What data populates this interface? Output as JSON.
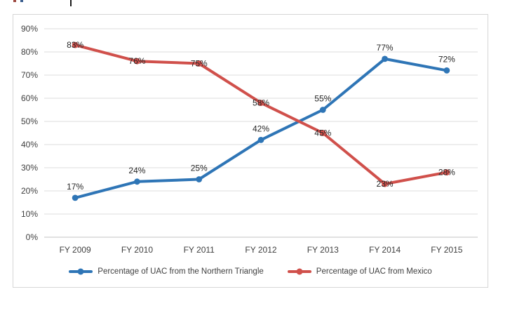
{
  "chart_data": {
    "type": "line",
    "title": "",
    "categories": [
      "FY 2009",
      "FY 2010",
      "FY 2011",
      "FY 2012",
      "FY 2013",
      "FY 2014",
      "FY 2015"
    ],
    "series": [
      {
        "name": "Percentage of UAC from the Northern Triangle",
        "color": "#2E75B6",
        "values": [
          17,
          24,
          25,
          42,
          55,
          77,
          72
        ],
        "label_position": "above"
      },
      {
        "name": "Percentage of UAC from Mexico",
        "color": "#D0504B",
        "values": [
          83,
          76,
          75,
          58,
          45,
          23,
          28
        ],
        "label_position": "center"
      }
    ],
    "ylim": [
      0,
      90
    ],
    "ytick_step": 10,
    "tick_format": "percent",
    "grid": true,
    "gridline_color": "#dcdcdc",
    "axis_line_color": "#c3c3c3",
    "data_label_color": "#262626",
    "tick_label_color": "#3f3f3f",
    "legend_position": "bottom"
  }
}
